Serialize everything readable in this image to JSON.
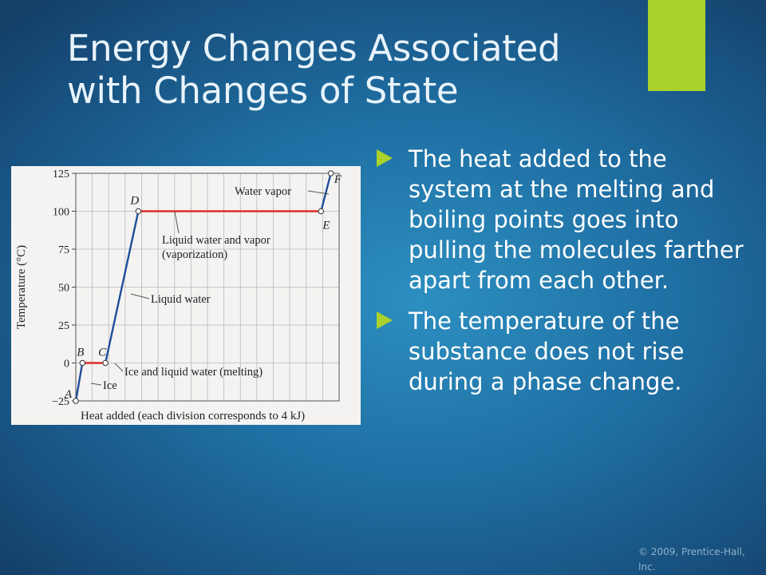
{
  "slide": {
    "title_line1": "Energy Changes Associated",
    "title_line2": "with Changes of State",
    "accent_color": "#aad12c",
    "copyright_line1": "© 2009, Prentice-Hall,",
    "copyright_line2": "Inc."
  },
  "bullets": [
    {
      "text": "The heat added to the system at the melting and boiling points goes into pulling the molecules farther apart from each other.",
      "icon": "triangle-bullet-icon"
    },
    {
      "text": "The temperature of the substance does not rise during a phase change.",
      "icon": "triangle-bullet-icon"
    }
  ],
  "chart_data": {
    "type": "line",
    "title": "",
    "xlabel": "Heat added (each division corresponds to 4 kJ)",
    "ylabel": "Temperature (°C)",
    "ylim": [
      -25,
      125
    ],
    "x_divisions": 16,
    "yticks": [
      "125",
      "100",
      "75",
      "50",
      "25",
      "0",
      "−25"
    ],
    "grid": true,
    "segments": [
      {
        "from": "A",
        "to": "B",
        "phase": "solid",
        "color": "#1f4e99"
      },
      {
        "from": "B",
        "to": "C",
        "phase": "transition",
        "color": "#d9302a"
      },
      {
        "from": "C",
        "to": "D",
        "phase": "liquid",
        "color": "#1f4e99"
      },
      {
        "from": "D",
        "to": "E",
        "phase": "transition",
        "color": "#d9302a"
      },
      {
        "from": "E",
        "to": "F",
        "phase": "gas",
        "color": "#1f4e99"
      }
    ],
    "points": [
      {
        "label": "A",
        "x": 0.0,
        "y": -25
      },
      {
        "label": "B",
        "x": 0.4,
        "y": 0
      },
      {
        "label": "C",
        "x": 1.8,
        "y": 0
      },
      {
        "label": "D",
        "x": 3.8,
        "y": 100
      },
      {
        "label": "E",
        "x": 14.9,
        "y": 100
      },
      {
        "label": "F",
        "x": 15.5,
        "y": 125
      }
    ],
    "annotations": [
      {
        "text": "Ice",
        "target": "AB"
      },
      {
        "text": "Ice and liquid water (melting)",
        "target": "BC"
      },
      {
        "text": "Liquid water",
        "target": "CD"
      },
      {
        "text": "Liquid water and vapor",
        "target": "DE"
      },
      {
        "text": "(vaporization)",
        "target": "DE"
      },
      {
        "text": "Water vapor",
        "target": "EF"
      }
    ]
  }
}
